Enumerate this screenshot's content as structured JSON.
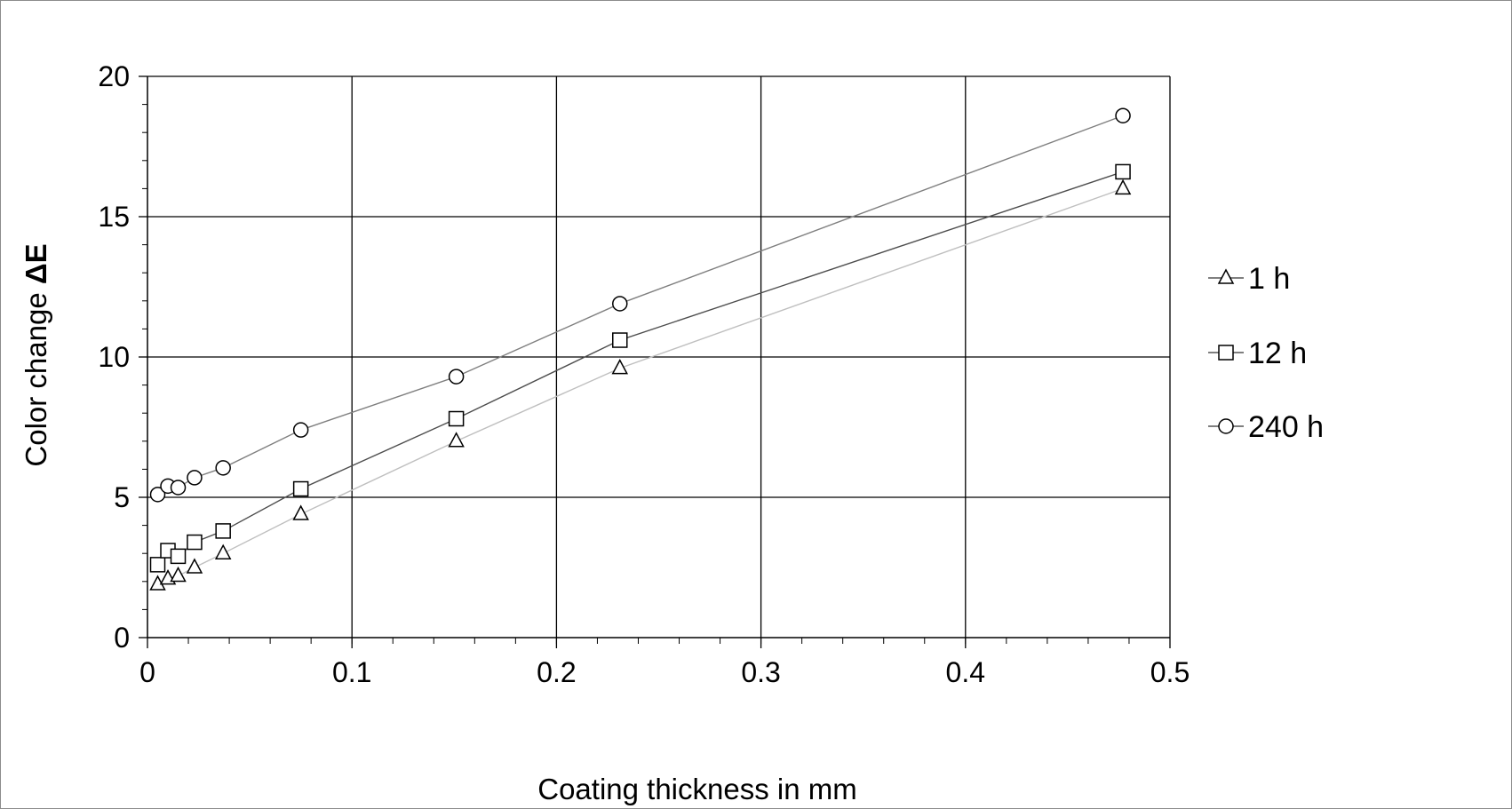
{
  "chart_data": {
    "type": "line",
    "xlabel": "Coating thickness in mm",
    "ylabel_prefix": "Color change ",
    "ylabel_symbol": "ΔE",
    "xlim": [
      0,
      0.5
    ],
    "ylim": [
      0,
      20
    ],
    "x_ticks": [
      "0",
      "0.1",
      "0.2",
      "0.3",
      "0.4",
      "0.5"
    ],
    "y_ticks": [
      "0",
      "5",
      "10",
      "15",
      "20"
    ],
    "grid": true,
    "legend_position": "right",
    "series": [
      {
        "name": "1 h",
        "marker": "triangle",
        "line_color": "#bfbfbf",
        "x": [
          0.005,
          0.01,
          0.015,
          0.023,
          0.037,
          0.075,
          0.151,
          0.231,
          0.477
        ],
        "y": [
          1.9,
          2.1,
          2.2,
          2.5,
          3.0,
          4.4,
          7.0,
          9.6,
          16.0
        ]
      },
      {
        "name": "12 h",
        "marker": "square",
        "line_color": "#4d4d4d",
        "x": [
          0.005,
          0.01,
          0.015,
          0.023,
          0.037,
          0.075,
          0.151,
          0.231,
          0.477
        ],
        "y": [
          2.6,
          3.1,
          2.9,
          3.4,
          3.8,
          5.3,
          7.8,
          10.6,
          16.6
        ]
      },
      {
        "name": "240 h",
        "marker": "circle",
        "line_color": "#7f7f7f",
        "x": [
          0.005,
          0.01,
          0.015,
          0.023,
          0.037,
          0.075,
          0.151,
          0.231,
          0.477
        ],
        "y": [
          5.1,
          5.4,
          5.35,
          5.7,
          6.05,
          7.4,
          9.3,
          11.9,
          18.6
        ]
      }
    ]
  }
}
